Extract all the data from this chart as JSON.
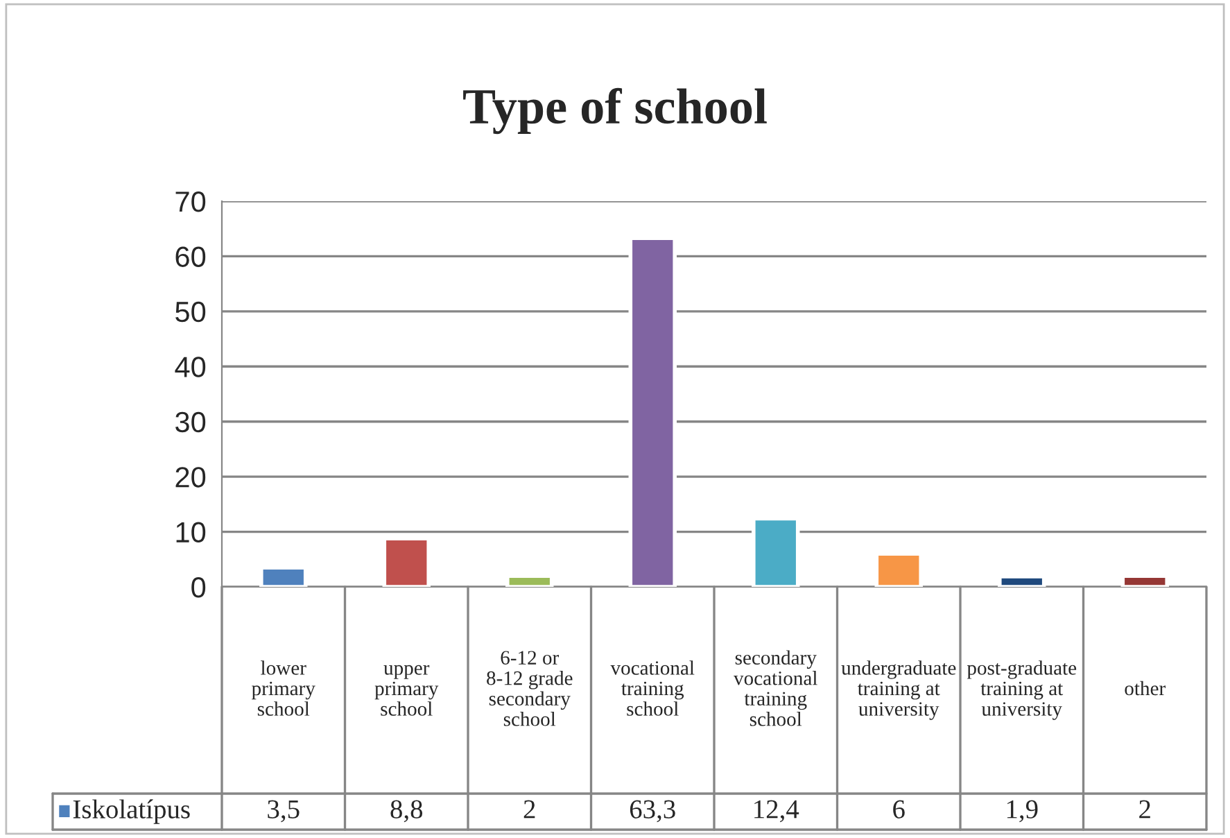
{
  "chart_data": {
    "type": "bar",
    "title": "Type of school",
    "categories": [
      "lower primary school",
      "upper primary school",
      "6-12 or 8-12 grade secondary school",
      "vocational training school",
      "secondary vocational training school",
      "undergraduate training at university",
      "post-graduate training at university",
      "other"
    ],
    "series": [
      {
        "name": "Iskolatípus",
        "color": "#4f81bd",
        "colors": [
          "#4f81bd",
          "#c0504d",
          "#9bbb59",
          "#8064a2",
          "#4bacc6",
          "#f79646",
          "#1f497d",
          "#953735"
        ],
        "values": [
          3.5,
          8.8,
          2,
          63.3,
          12.4,
          6,
          1.9,
          2
        ],
        "value_labels": [
          "3,5",
          "8,8",
          "2",
          "63,3",
          "12,4",
          "6",
          "1,9",
          "2"
        ]
      }
    ],
    "ylim": [
      0,
      70
    ],
    "yticks": [
      0,
      10,
      20,
      30,
      40,
      50,
      60,
      70
    ],
    "grid": "y"
  }
}
